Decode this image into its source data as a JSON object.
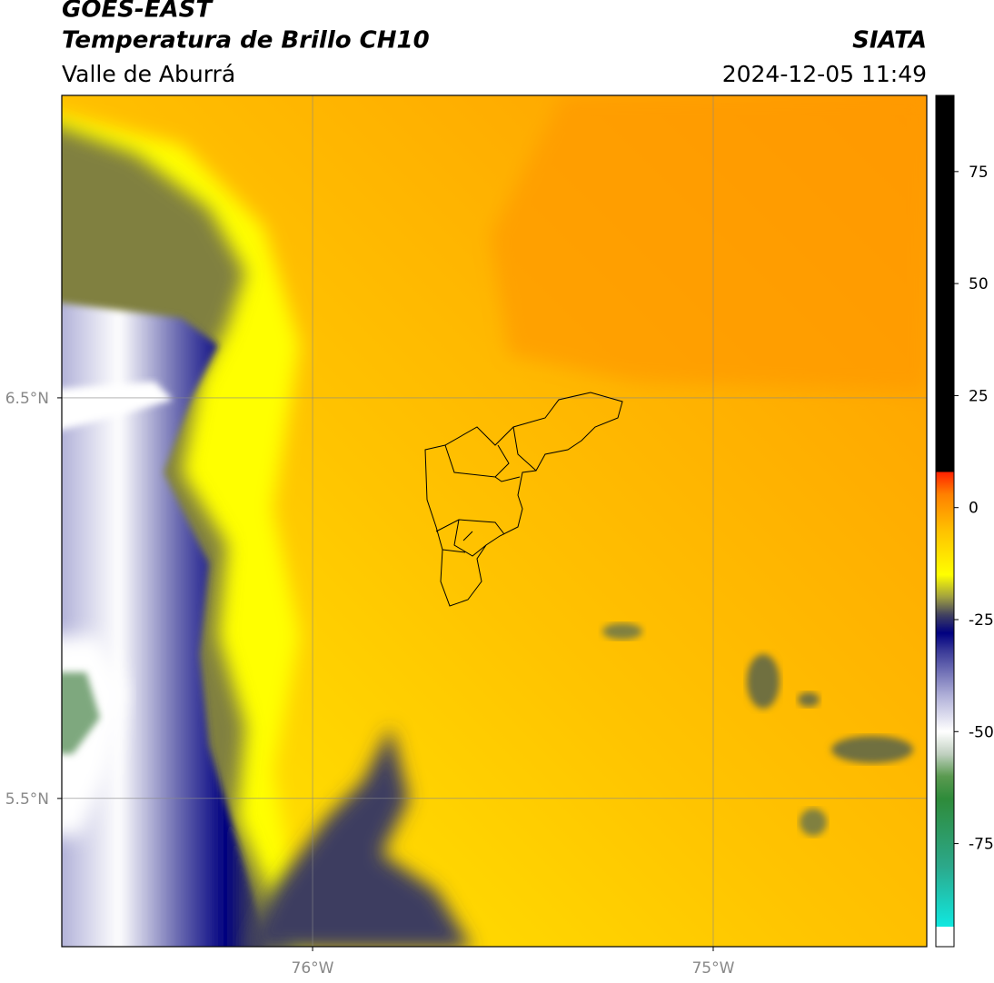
{
  "header": {
    "title": "GOES-EAST",
    "subtitle": "Temperatura de Brillo CH10",
    "source": "SIATA",
    "region": "Valle de Aburrá",
    "timestamp": "2024-12-05 11:49"
  },
  "map": {
    "lat_lim": [
      5.13,
      7.255
    ],
    "lon_lim": [
      -76.626,
      -74.467
    ],
    "lat_ticks": [
      {
        "value": 6.5,
        "label": "6.5°N"
      },
      {
        "value": 5.5,
        "label": "5.5°N"
      }
    ],
    "lon_ticks": [
      {
        "value": -76,
        "label": "76°W"
      },
      {
        "value": -75,
        "label": "75°W"
      }
    ],
    "grid": true
  },
  "colorbar": {
    "lim": [
      -98,
      92
    ],
    "ticks": [
      75,
      50,
      25,
      0,
      -25,
      -50,
      -75
    ],
    "colormap": [
      {
        "value": -98,
        "color": "#ffffff"
      },
      {
        "value": -93.5,
        "color": "#ffffff"
      },
      {
        "value": -93.5,
        "color": "#10e8e0"
      },
      {
        "value": -80,
        "color": "#2ca88a"
      },
      {
        "value": -65,
        "color": "#2e8b3a"
      },
      {
        "value": -60,
        "color": "#5a9a50"
      },
      {
        "value": -55,
        "color": "#c0d0c0"
      },
      {
        "value": -50,
        "color": "#ffffff"
      },
      {
        "value": -42,
        "color": "#b0b0d8"
      },
      {
        "value": -32,
        "color": "#3a3a98"
      },
      {
        "value": -28,
        "color": "#000080"
      },
      {
        "value": -24,
        "color": "#404060"
      },
      {
        "value": -20,
        "color": "#a0a040"
      },
      {
        "value": -15,
        "color": "#ffff00"
      },
      {
        "value": -5,
        "color": "#ffc000"
      },
      {
        "value": 3,
        "color": "#ff8000"
      },
      {
        "value": 8,
        "color": "#ff2000"
      },
      {
        "value": 8,
        "color": "#000000"
      },
      {
        "value": 92,
        "color": "#000000"
      }
    ]
  }
}
